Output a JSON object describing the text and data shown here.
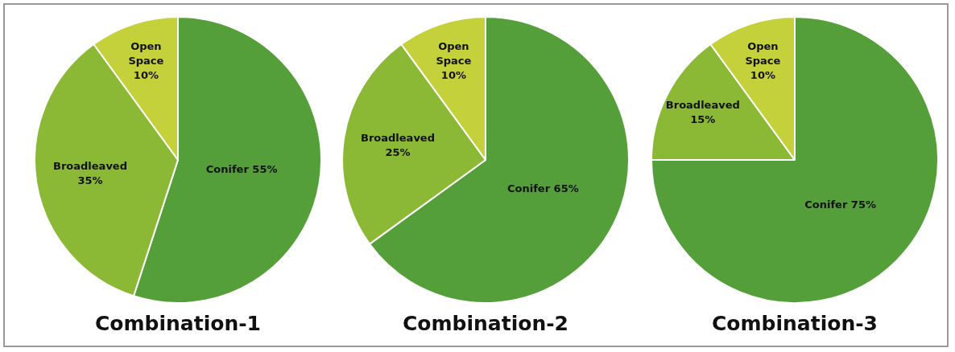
{
  "chart_data": [
    {
      "type": "pie",
      "title": "Combination-1",
      "categories": [
        "Conifer",
        "Broadleaved",
        "Open Space"
      ],
      "values": [
        55,
        35,
        10
      ],
      "colors": [
        "#559f3a",
        "#8bb935",
        "#c4d13b"
      ],
      "value_labels": [
        "55%",
        "35%",
        "10%"
      ],
      "legend": false
    },
    {
      "type": "pie",
      "title": "Combination-2",
      "categories": [
        "Conifer",
        "Broadleaved",
        "Open Space"
      ],
      "values": [
        65,
        25,
        10
      ],
      "colors": [
        "#559f3a",
        "#8bb935",
        "#c4d13b"
      ],
      "value_labels": [
        "65%",
        "25%",
        "10%"
      ],
      "legend": false
    },
    {
      "type": "pie",
      "title": "Combination-3",
      "categories": [
        "Conifer",
        "Broadleaved",
        "Open Space"
      ],
      "values": [
        75,
        15,
        10
      ],
      "colors": [
        "#559f3a",
        "#8bb935",
        "#c4d13b"
      ],
      "value_labels": [
        "75%",
        "15%",
        "10%"
      ],
      "legend": false
    }
  ]
}
